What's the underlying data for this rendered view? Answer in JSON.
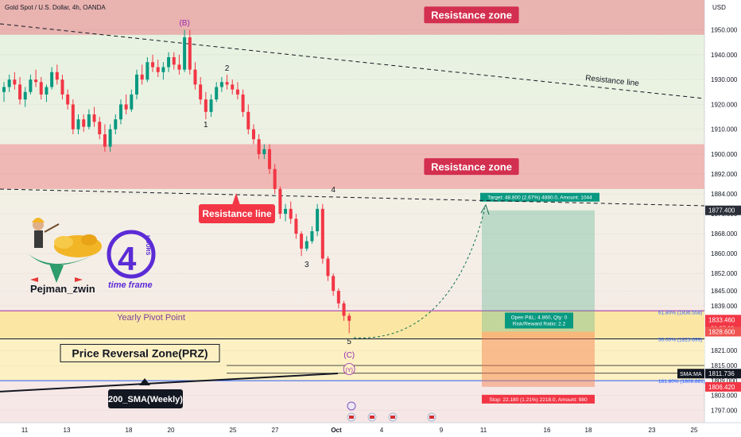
{
  "header": {
    "title": "Gold Spot / U.S. Dollar, 4h, OANDA",
    "currency": "USD"
  },
  "author": {
    "name": "Pejman_zwin",
    "timeframe_number": "4",
    "timeframe_word": "HOURS",
    "timeframe_caption": "time frame"
  },
  "chart_data": {
    "type": "candlestick",
    "symbol": "Gold Spot / U.S. Dollar",
    "interval": "4h",
    "source": "OANDA",
    "ylim": [
      1792,
      1962
    ],
    "y_ticks": [
      1950,
      1940,
      1930,
      1920,
      1910,
      1900,
      1892,
      1884,
      1876,
      1868,
      1860,
      1852,
      1845,
      1839,
      1821,
      1815,
      1809,
      1803,
      1797
    ],
    "x_ticks": [
      "11",
      "13",
      "18",
      "20",
      "25",
      "27",
      "Oct",
      "4",
      "9",
      "11",
      "16",
      "18",
      "23",
      "25"
    ],
    "price_labels": [
      {
        "text": "1877.400",
        "value": 1877.4,
        "color": "#ffffff",
        "bg": "#2a2e39"
      },
      {
        "text": "1833.460",
        "sub": "01:37:02",
        "value": 1833.46,
        "color": "#ffffff",
        "bg": "#f23645"
      },
      {
        "text": "1828.600",
        "value": 1828.6,
        "color": "#ffffff",
        "bg": "#ef5350"
      },
      {
        "text": "1811.736",
        "prefix": "SMA:MA",
        "value": 1811.736,
        "color": "#ffffff",
        "bg": "#131722"
      },
      {
        "text": "1806.420",
        "value": 1806.42,
        "color": "#ffffff",
        "bg": "#f23645"
      }
    ],
    "zones": [
      {
        "label": "Resistance zone",
        "from": 1948,
        "to": 1962,
        "color": "#e9b3b0"
      },
      {
        "label": "Resistance zone",
        "from": 1886,
        "to": 1904,
        "color": "#f0b8b4"
      },
      {
        "label": "Yearly Pivot Point",
        "from": 1826,
        "to": 1837,
        "color": "#fbe7a3"
      },
      {
        "label": "Price Reversal Zone(PRZ)",
        "from": 1808.9,
        "to": 1825.7,
        "color": "#fdf1c4"
      }
    ],
    "lines": [
      {
        "label": "Resistance line",
        "type": "dashed"
      },
      {
        "label": "Resistance line",
        "type": "dashed"
      },
      {
        "label": "200_SMA(Weekly)",
        "type": "solid"
      }
    ],
    "fib_labels": [
      {
        "text": "61.80% (1836.558)",
        "value": 1836.558
      },
      {
        "text": "50.00% (1825.699)",
        "value": 1825.699
      },
      {
        "text": "161.80% (1808.881)",
        "value": 1808.881
      }
    ],
    "wave_labels": [
      "(B)",
      "1",
      "2",
      "3",
      "4",
      "5",
      "(C)",
      "(Y)"
    ],
    "position": {
      "target_text": "Target: 48.800 (2.67%) 4880.0, Amount: 1044",
      "stop_text": "Stop: 22.180 (1.21%) 2218.0, Amount: 980",
      "open_text": "Open P&L: 4.860, Qty: 0",
      "rr_text": "Risk/Reward Ratio: 2.2",
      "entry": 1828.6,
      "target": 1877.4,
      "stop": 1806.42
    },
    "candles": [
      [
        1925,
        1929,
        1921,
        1927
      ],
      [
        1927,
        1932,
        1925,
        1930
      ],
      [
        1930,
        1933,
        1926,
        1928
      ],
      [
        1928,
        1931,
        1920,
        1922
      ],
      [
        1922,
        1927,
        1919,
        1925
      ],
      [
        1925,
        1932,
        1924,
        1930
      ],
      [
        1930,
        1934,
        1927,
        1929
      ],
      [
        1929,
        1931,
        1922,
        1924
      ],
      [
        1924,
        1928,
        1921,
        1927
      ],
      [
        1927,
        1935,
        1926,
        1933
      ],
      [
        1933,
        1936,
        1928,
        1930
      ],
      [
        1930,
        1932,
        1922,
        1924
      ],
      [
        1924,
        1926,
        1918,
        1920
      ],
      [
        1920,
        1922,
        1908,
        1910
      ],
      [
        1910,
        1916,
        1908,
        1914
      ],
      [
        1914,
        1916,
        1909,
        1911
      ],
      [
        1911,
        1918,
        1910,
        1916
      ],
      [
        1916,
        1919,
        1911,
        1913
      ],
      [
        1913,
        1915,
        1906,
        1908
      ],
      [
        1908,
        1912,
        1901,
        1903
      ],
      [
        1903,
        1912,
        1901,
        1910
      ],
      [
        1910,
        1916,
        1908,
        1914
      ],
      [
        1914,
        1922,
        1912,
        1920
      ],
      [
        1920,
        1924,
        1916,
        1918
      ],
      [
        1918,
        1926,
        1917,
        1924
      ],
      [
        1924,
        1934,
        1922,
        1932
      ],
      [
        1932,
        1936,
        1928,
        1930
      ],
      [
        1930,
        1939,
        1929,
        1937
      ],
      [
        1937,
        1940,
        1933,
        1935
      ],
      [
        1935,
        1938,
        1931,
        1933
      ],
      [
        1933,
        1937,
        1930,
        1935
      ],
      [
        1935,
        1941,
        1933,
        1939
      ],
      [
        1939,
        1941,
        1934,
        1936
      ],
      [
        1936,
        1940,
        1932,
        1934
      ],
      [
        1934,
        1950,
        1933,
        1947
      ],
      [
        1947,
        1950,
        1932,
        1934
      ],
      [
        1934,
        1937,
        1926,
        1928
      ],
      [
        1928,
        1931,
        1920,
        1922
      ],
      [
        1922,
        1925,
        1914,
        1917
      ],
      [
        1917,
        1924,
        1915,
        1922
      ],
      [
        1922,
        1929,
        1921,
        1927
      ],
      [
        1927,
        1931,
        1925,
        1929
      ],
      [
        1929,
        1932,
        1926,
        1928
      ],
      [
        1928,
        1930,
        1924,
        1926
      ],
      [
        1926,
        1929,
        1922,
        1924
      ],
      [
        1924,
        1926,
        1915,
        1917
      ],
      [
        1917,
        1920,
        1908,
        1910
      ],
      [
        1910,
        1912,
        1904,
        1906
      ],
      [
        1906,
        1908,
        1898,
        1900
      ],
      [
        1900,
        1904,
        1898,
        1902
      ],
      [
        1902,
        1904,
        1892,
        1894
      ],
      [
        1894,
        1896,
        1884,
        1886
      ],
      [
        1886,
        1887,
        1874,
        1876
      ],
      [
        1876,
        1880,
        1873,
        1878
      ],
      [
        1878,
        1881,
        1872,
        1874
      ],
      [
        1874,
        1876,
        1866,
        1868
      ],
      [
        1868,
        1869,
        1859,
        1862
      ],
      [
        1862,
        1867,
        1861,
        1865
      ],
      [
        1865,
        1871,
        1864,
        1869
      ],
      [
        1869,
        1880,
        1867,
        1878
      ],
      [
        1878,
        1880,
        1856,
        1858
      ],
      [
        1858,
        1859,
        1849,
        1851
      ],
      [
        1851,
        1852,
        1843,
        1845
      ],
      [
        1845,
        1846,
        1838,
        1840
      ],
      [
        1840,
        1841,
        1833,
        1835
      ],
      [
        1835,
        1836,
        1828,
        1833
      ]
    ]
  }
}
